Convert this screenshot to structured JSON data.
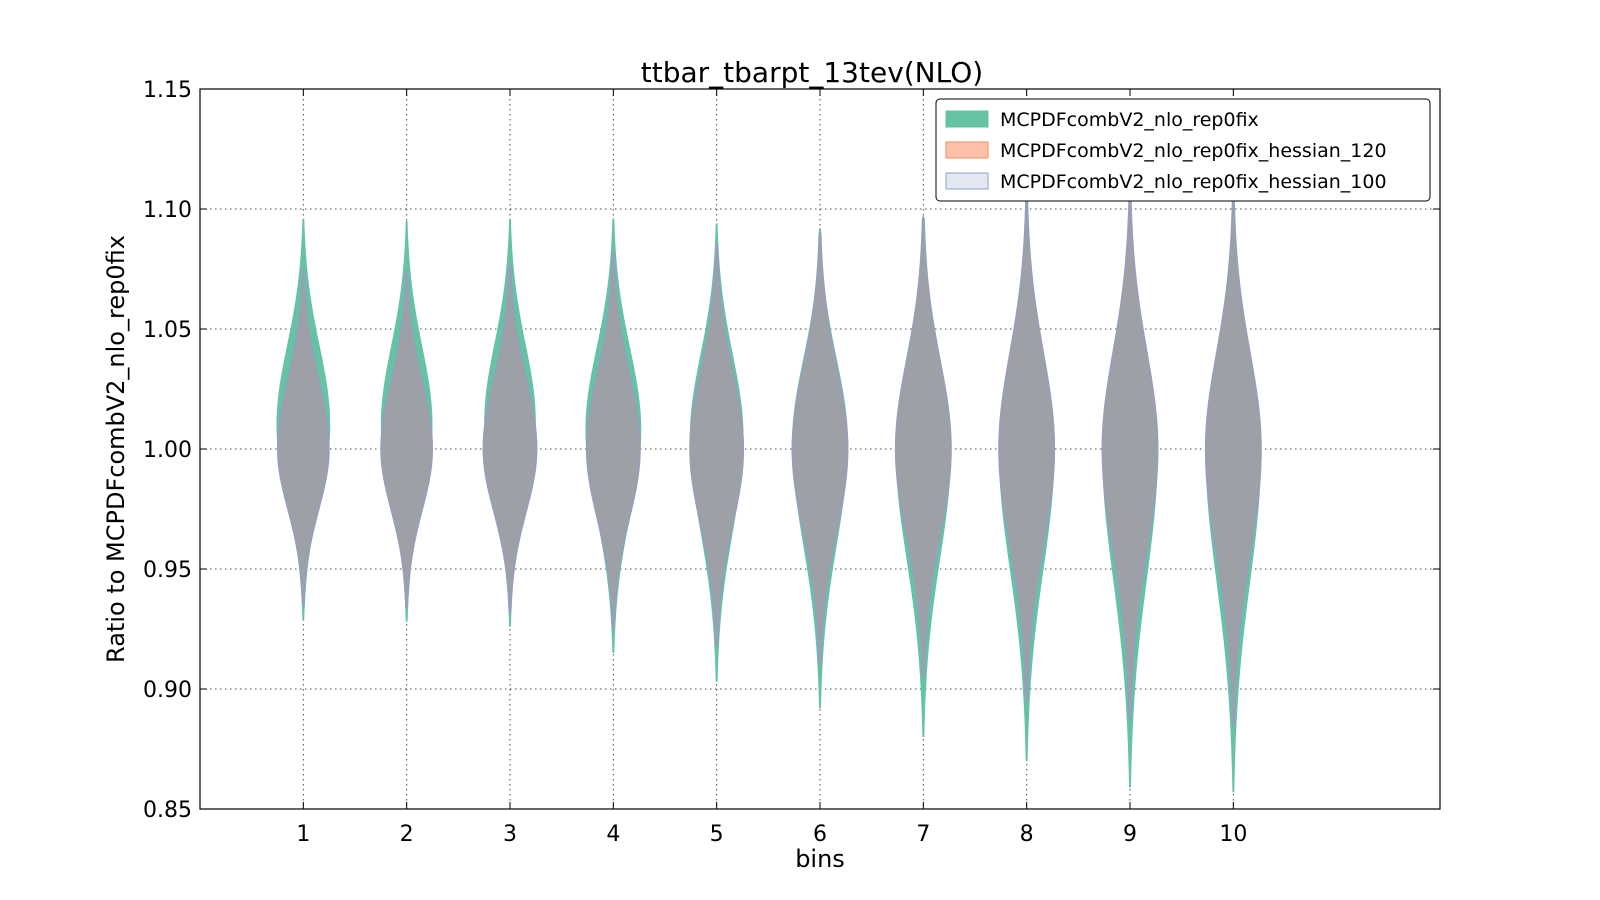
{
  "chart_data": {
    "type": "violin",
    "title": "ttbar_tbarpt_13tev(NLO)",
    "xlabel": "bins",
    "ylabel": "Ratio to MCPDFcombV2_nlo_rep0fix",
    "ylim": [
      0.85,
      1.15
    ],
    "xlim": [
      0,
      12
    ],
    "yticks": [
      "0.85",
      "0.90",
      "0.95",
      "1.00",
      "1.05",
      "1.10",
      "1.15"
    ],
    "categories": [
      "1",
      "2",
      "3",
      "4",
      "5",
      "6",
      "7",
      "8",
      "9",
      "10"
    ],
    "grid": true,
    "legend_position": "top-right",
    "series": [
      {
        "name": "MCPDFcombV2_nlo_rep0fix",
        "color": "#66c2a5",
        "min": [
          0.929,
          0.928,
          0.926,
          0.915,
          0.903,
          0.892,
          0.88,
          0.87,
          0.859,
          0.857
        ],
        "max": [
          1.096,
          1.095,
          1.096,
          1.096,
          1.094,
          1.092,
          1.097,
          1.105,
          1.106,
          1.104
        ],
        "mode": [
          1.01,
          1.01,
          1.011,
          1.008,
          1.005,
          1.003,
          1.001,
          1.0,
          1.0,
          1.0
        ],
        "halfwidth": [
          0.26,
          0.25,
          0.25,
          0.27,
          0.26,
          0.27,
          0.27,
          0.27,
          0.27,
          0.27
        ]
      },
      {
        "name": "MCPDFcombV2_nlo_rep0fix_hessian_120",
        "color": "#fc8d62",
        "min": [
          0.935,
          0.934,
          0.932,
          0.925,
          0.918,
          0.91,
          0.905,
          0.895,
          0.888,
          0.885
        ],
        "max": [
          1.075,
          1.074,
          1.077,
          1.082,
          1.085,
          1.09,
          1.096,
          1.104,
          1.106,
          1.104
        ],
        "mode": [
          1.0,
          1.0,
          1.0,
          1.0,
          1.0,
          1.0,
          1.0,
          1.0,
          1.0,
          1.0
        ],
        "halfwidth": [
          0.25,
          0.25,
          0.26,
          0.26,
          0.26,
          0.27,
          0.27,
          0.27,
          0.27,
          0.27
        ]
      },
      {
        "name": "MCPDFcombV2_nlo_rep0fix_hessian_100",
        "color": "#8da0cb",
        "min": [
          0.935,
          0.934,
          0.932,
          0.925,
          0.918,
          0.91,
          0.905,
          0.895,
          0.888,
          0.885
        ],
        "max": [
          1.075,
          1.074,
          1.077,
          1.082,
          1.085,
          1.09,
          1.096,
          1.104,
          1.106,
          1.104
        ],
        "mode": [
          1.0,
          1.0,
          1.0,
          1.0,
          1.0,
          1.0,
          1.0,
          1.0,
          1.0,
          1.0
        ],
        "halfwidth": [
          0.25,
          0.25,
          0.26,
          0.26,
          0.26,
          0.27,
          0.27,
          0.27,
          0.27,
          0.27
        ]
      }
    ]
  }
}
